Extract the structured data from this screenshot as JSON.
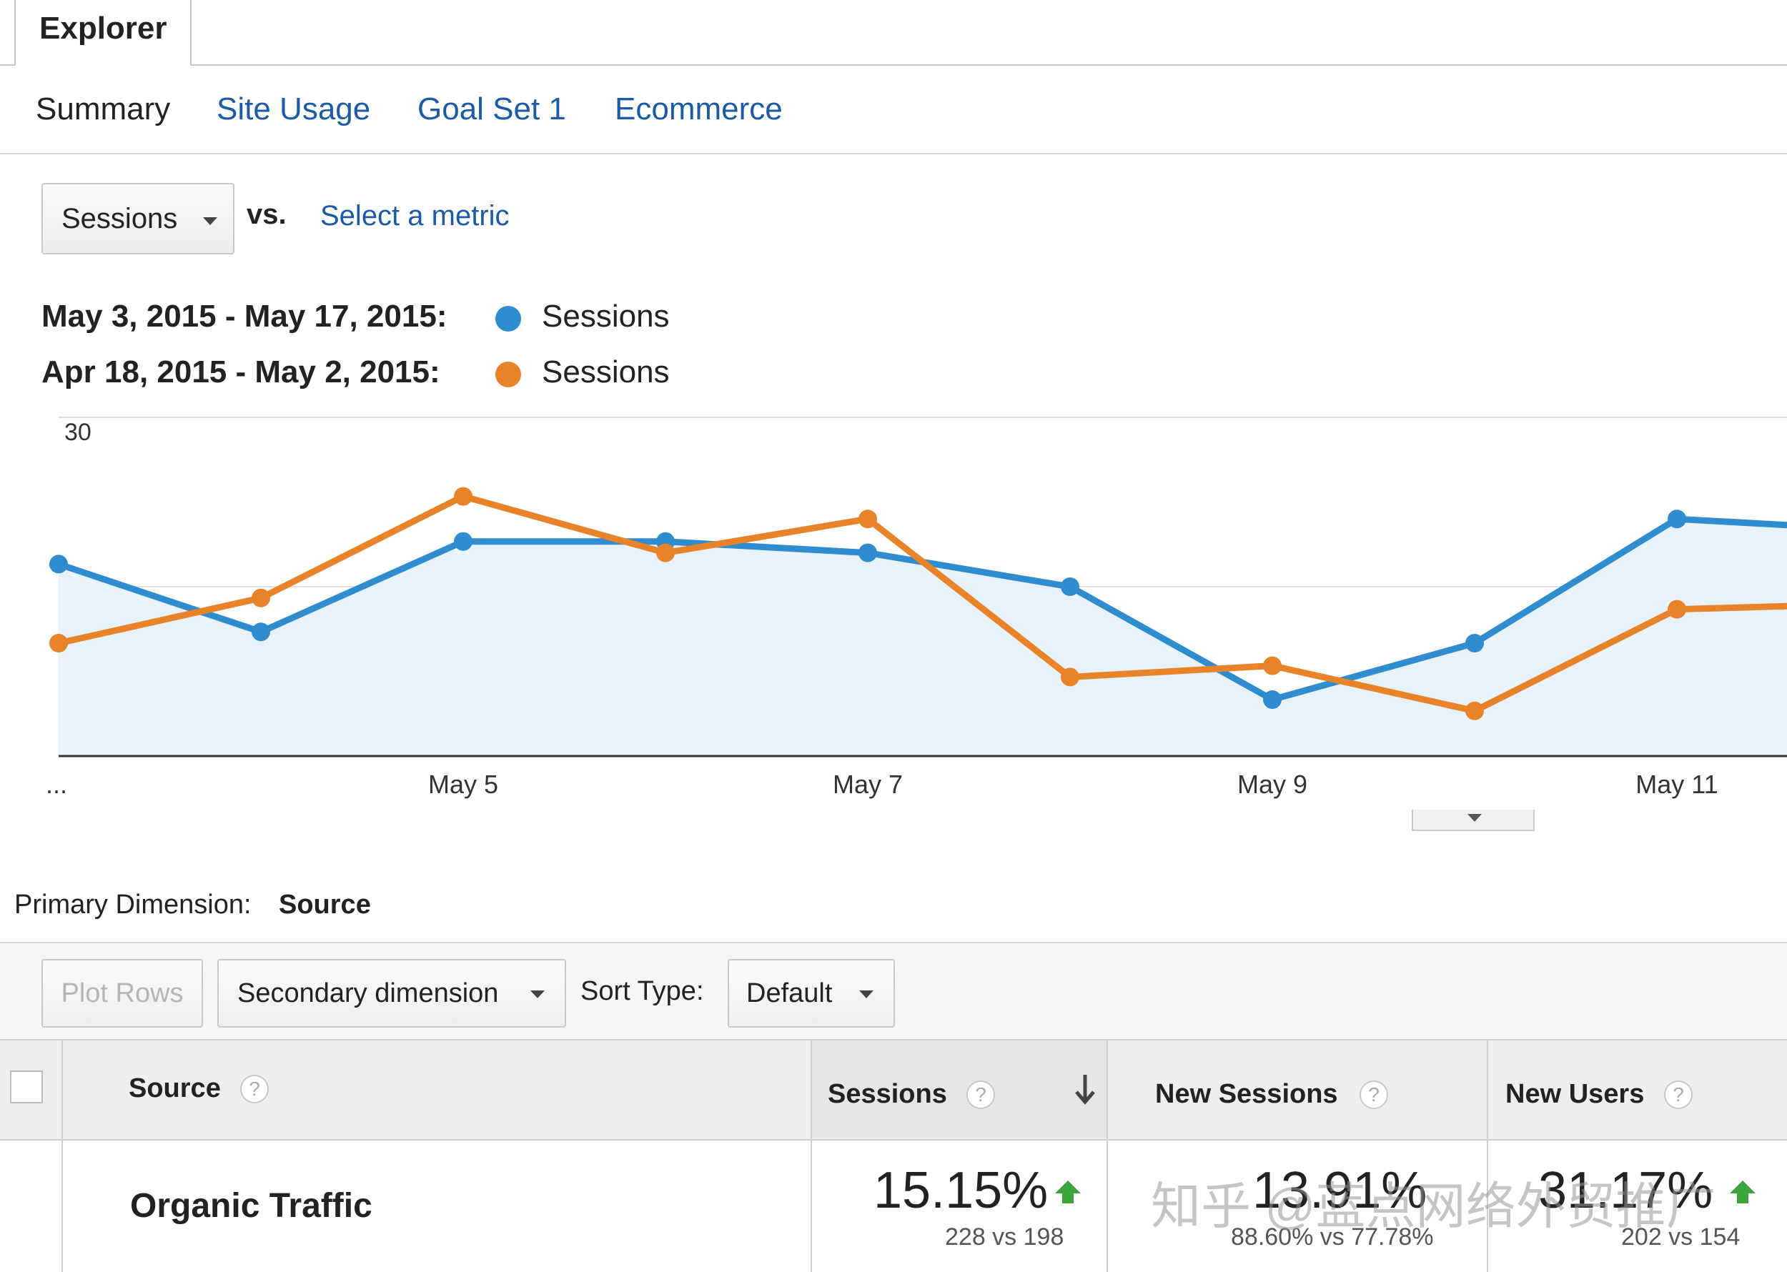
{
  "app": {
    "tab": "Explorer"
  },
  "subtabs": [
    "Summary",
    "Site Usage",
    "Goal Set 1",
    "Ecommerce"
  ],
  "metric": {
    "selected": "Sessions",
    "vs": "vs.",
    "select_link": "Select a metric"
  },
  "legend": [
    {
      "range": "May 3, 2015 - May 17, 2015:",
      "metric": "Sessions",
      "color": "#2e8ccf"
    },
    {
      "range": "Apr 18, 2015 - May 2, 2015:",
      "metric": "Sessions",
      "color": "#e8832a"
    }
  ],
  "chart_data": {
    "type": "line",
    "x": [
      "May 3",
      "May 4",
      "May 5",
      "May 6",
      "May 7",
      "May 8",
      "May 9",
      "May 10",
      "May 11",
      "May 12"
    ],
    "x_tick_labels": [
      "...",
      "May 5",
      "May 7",
      "May 9",
      "May 11"
    ],
    "series": [
      {
        "name": "May 3, 2015 - May 17, 2015",
        "values": [
          17,
          11,
          19,
          19,
          18,
          15,
          5,
          10,
          21,
          20
        ],
        "color": "#2e8ccf",
        "area": true
      },
      {
        "name": "Apr 18, 2015 - May 2, 2015",
        "values": [
          10,
          14,
          23,
          18,
          21,
          7,
          8,
          4,
          13,
          13.5
        ],
        "color": "#e8832a",
        "area": false
      }
    ],
    "y_ticks": [
      "30",
      "15"
    ],
    "ylim": [
      0,
      30
    ],
    "grid": true
  },
  "primary_dimension": {
    "label": "Primary Dimension:",
    "value": "Source"
  },
  "toolbar": {
    "plot_rows": "Plot Rows",
    "secondary_dimension": "Secondary dimension",
    "sort_type_label": "Sort Type:",
    "sort_type_value": "Default"
  },
  "table": {
    "headers": {
      "source": "Source",
      "sessions": "Sessions",
      "new_sessions": "New Sessions",
      "new_users": "New Users",
      "help": "?"
    },
    "rows": [
      {
        "source": "Organic Traffic",
        "sessions_pct": "15.15%",
        "sessions_cmp": "228 vs 198",
        "new_sessions_pct": "13.91%",
        "new_sessions_cmp": "88.60% vs 77.78%",
        "new_users_pct": "31.17%",
        "new_users_cmp": "202 vs 154"
      }
    ]
  },
  "watermark": "知乎 @蓝点网络外贸推广"
}
